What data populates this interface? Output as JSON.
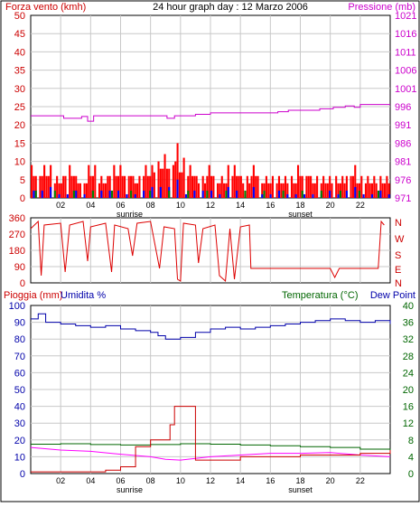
{
  "header": {
    "left_label": "Forza vento (kmh)",
    "center_title": "24 hour graph day : 12 Marzo 2006",
    "right_label": "Pressione (mb)"
  },
  "mid_panel": {
    "compass_labels": [
      "N",
      "W",
      "S",
      "E",
      "N"
    ]
  },
  "bottom_panel": {
    "left_label": "Pioggia (mm)",
    "left_label2": "Umidita %",
    "right_label": "Temperatura (°C)",
    "right_label2": "Dew Point"
  },
  "x_axis": {
    "ticks": [
      "02",
      "04",
      "06",
      "08",
      "10",
      "12",
      "14",
      "16",
      "18",
      "20",
      "22"
    ],
    "sunrise_label": "sunrise",
    "sunset_label": "sunset",
    "sunrise_hour": 6.6,
    "sunset_hour": 18.0
  },
  "colors": {
    "wind_speed": "#ff0000",
    "wind_gust_blue": "#0000ff",
    "wind_green": "#008000",
    "pressure": "#cc00cc",
    "direction": "#dd0000",
    "humidity": "#0000aa",
    "temperature": "#006600",
    "dewpoint": "#ff00ff",
    "rain": "#cc0000",
    "grid": "#c8c8c8",
    "frame": "#000000"
  },
  "chart_data": [
    {
      "type": "bar",
      "xlim": [
        0,
        24
      ],
      "ylim": [
        0,
        50
      ],
      "y_ticks": [
        0,
        5,
        10,
        15,
        20,
        25,
        30,
        35,
        40,
        45,
        50
      ],
      "y2_ticks": [
        "971",
        "976",
        "981",
        "986",
        "991",
        "996",
        "1001",
        "1006",
        "1011",
        "1016",
        "1021"
      ],
      "y2lim": [
        971,
        1021
      ],
      "wind_peaks": [
        [
          0.3,
          9
        ],
        [
          1.0,
          9
        ],
        [
          1.8,
          6
        ],
        [
          2.6,
          9
        ],
        [
          3.4,
          6
        ],
        [
          4.2,
          9
        ],
        [
          4.9,
          6
        ],
        [
          5.6,
          9
        ],
        [
          6.3,
          9
        ],
        [
          7.2,
          6
        ],
        [
          7.9,
          9
        ],
        [
          8.5,
          10
        ],
        [
          8.8,
          13
        ],
        [
          9.1,
          12
        ],
        [
          9.4,
          14
        ],
        [
          9.7,
          15
        ],
        [
          10.1,
          11
        ],
        [
          10.6,
          9
        ],
        [
          11.3,
          6
        ],
        [
          12.1,
          9
        ],
        [
          12.8,
          6
        ],
        [
          13.6,
          9
        ],
        [
          14.3,
          6
        ],
        [
          15.1,
          9
        ],
        [
          15.8,
          6
        ],
        [
          16.6,
          6
        ],
        [
          17.4,
          6
        ],
        [
          18.2,
          9
        ],
        [
          19.0,
          6
        ],
        [
          19.8,
          6
        ],
        [
          20.6,
          6
        ],
        [
          21.4,
          9
        ],
        [
          22.2,
          6
        ],
        [
          23.0,
          6
        ],
        [
          23.6,
          6
        ]
      ],
      "pressure": [
        [
          0,
          993.5
        ],
        [
          1.5,
          993.5
        ],
        [
          2.2,
          992.8
        ],
        [
          3.4,
          993.3
        ],
        [
          3.8,
          992.0
        ],
        [
          4.2,
          993.5
        ],
        [
          8.8,
          993.5
        ],
        [
          9.1,
          992.8
        ],
        [
          9.6,
          993.5
        ],
        [
          11.0,
          993.9
        ],
        [
          12.0,
          994.3
        ],
        [
          16.5,
          994.6
        ],
        [
          17.2,
          995.0
        ],
        [
          19.3,
          995.4
        ],
        [
          20.2,
          995.8
        ],
        [
          21.0,
          996.2
        ],
        [
          21.6,
          995.8
        ],
        [
          22.0,
          996.6
        ],
        [
          24.0,
          996.6
        ]
      ]
    },
    {
      "type": "line",
      "xlim": [
        0,
        24
      ],
      "ylim": [
        0,
        360
      ],
      "y_ticks": [
        0,
        90,
        180,
        270,
        360
      ],
      "direction": [
        [
          0,
          300
        ],
        [
          0.5,
          340
        ],
        [
          0.7,
          40
        ],
        [
          0.9,
          320
        ],
        [
          2.0,
          330
        ],
        [
          2.3,
          60
        ],
        [
          2.6,
          320
        ],
        [
          3.5,
          340
        ],
        [
          3.8,
          120
        ],
        [
          4.0,
          310
        ],
        [
          5.0,
          330
        ],
        [
          5.4,
          60
        ],
        [
          5.6,
          320
        ],
        [
          6.5,
          300
        ],
        [
          6.8,
          150
        ],
        [
          7.1,
          330
        ],
        [
          8.0,
          340
        ],
        [
          8.6,
          80
        ],
        [
          8.9,
          310
        ],
        [
          9.6,
          300
        ],
        [
          9.8,
          20
        ],
        [
          10.0,
          10
        ],
        [
          10.2,
          330
        ],
        [
          11.0,
          320
        ],
        [
          11.2,
          110
        ],
        [
          11.5,
          300
        ],
        [
          12.3,
          320
        ],
        [
          12.6,
          40
        ],
        [
          13.0,
          10
        ],
        [
          13.3,
          300
        ],
        [
          13.6,
          20
        ],
        [
          14.0,
          310
        ],
        [
          14.6,
          320
        ],
        [
          14.7,
          80
        ],
        [
          20.0,
          80
        ],
        [
          20.3,
          30
        ],
        [
          20.6,
          80
        ],
        [
          23.2,
          80
        ],
        [
          23.4,
          340
        ],
        [
          23.6,
          320
        ]
      ]
    },
    {
      "type": "line",
      "xlim": [
        0,
        24
      ],
      "ylim": [
        0,
        100
      ],
      "y_ticks": [
        0,
        10,
        20,
        30,
        40,
        50,
        60,
        70,
        80,
        90,
        100
      ],
      "y2lim": [
        0,
        40
      ],
      "y2_ticks": [
        0,
        4,
        8,
        12,
        16,
        20,
        24,
        28,
        32,
        36,
        40
      ],
      "humidity": [
        [
          0,
          92
        ],
        [
          0.5,
          95
        ],
        [
          1.0,
          90
        ],
        [
          2.0,
          89
        ],
        [
          3.0,
          88
        ],
        [
          4.0,
          87
        ],
        [
          5.0,
          88
        ],
        [
          6.0,
          86
        ],
        [
          7.0,
          85
        ],
        [
          8.0,
          84
        ],
        [
          8.5,
          82
        ],
        [
          9.0,
          80
        ],
        [
          10.0,
          81
        ],
        [
          11.0,
          84
        ],
        [
          12.0,
          86
        ],
        [
          13.0,
          87
        ],
        [
          14.0,
          86
        ],
        [
          15.0,
          87
        ],
        [
          16.0,
          88
        ],
        [
          17.0,
          89
        ],
        [
          18.0,
          90
        ],
        [
          19.0,
          91
        ],
        [
          20.0,
          92
        ],
        [
          21.0,
          91
        ],
        [
          22.0,
          90
        ],
        [
          23.0,
          91
        ],
        [
          24.0,
          89
        ]
      ],
      "temperature": [
        [
          0,
          7.0
        ],
        [
          2,
          7.1
        ],
        [
          4,
          6.9
        ],
        [
          6,
          6.8
        ],
        [
          8,
          6.9
        ],
        [
          10,
          7.1
        ],
        [
          12,
          7.0
        ],
        [
          14,
          6.8
        ],
        [
          16,
          6.6
        ],
        [
          18,
          6.4
        ],
        [
          20,
          6.2
        ],
        [
          22,
          5.8
        ],
        [
          24,
          5.4
        ]
      ],
      "dewpoint": [
        [
          0,
          6.2
        ],
        [
          2,
          5.6
        ],
        [
          4,
          5.3
        ],
        [
          6,
          4.6
        ],
        [
          8,
          4.0
        ],
        [
          9,
          3.4
        ],
        [
          10,
          3.2
        ],
        [
          11,
          3.6
        ],
        [
          12,
          4.0
        ],
        [
          14,
          4.4
        ],
        [
          16,
          4.8
        ],
        [
          18,
          4.8
        ],
        [
          20,
          5.0
        ],
        [
          22,
          4.4
        ],
        [
          24,
          4.0
        ]
      ],
      "rain": [
        [
          0,
          1
        ],
        [
          4,
          1
        ],
        [
          5,
          2
        ],
        [
          6,
          4
        ],
        [
          7,
          16
        ],
        [
          8,
          20
        ],
        [
          9.3,
          29
        ],
        [
          9.6,
          40
        ],
        [
          11.0,
          40
        ],
        [
          11.0,
          8
        ],
        [
          14.0,
          10
        ],
        [
          18.0,
          11
        ],
        [
          22.0,
          12
        ],
        [
          24.0,
          14
        ]
      ]
    }
  ]
}
